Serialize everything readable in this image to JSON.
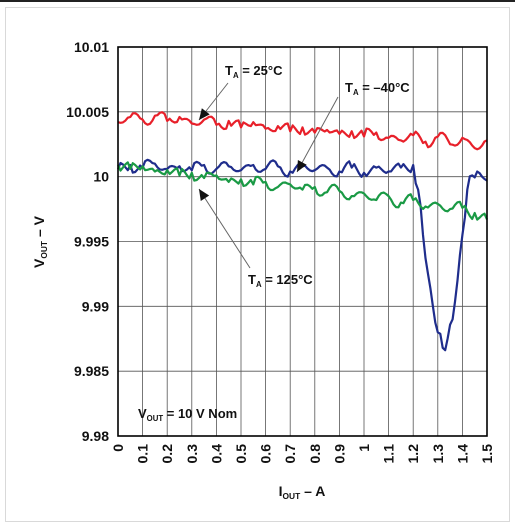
{
  "chart_data": {
    "type": "line",
    "title": "",
    "xlabel": {
      "main": "I",
      "sub": "OUT",
      "rest": " – A"
    },
    "ylabel": {
      "main": "V",
      "sub": "OUT",
      "rest": " – V"
    },
    "xlim": [
      0,
      1.5
    ],
    "ylim": [
      9.98,
      10.01
    ],
    "x_ticks": [
      "0",
      "0.1",
      "0.2",
      "0.3",
      "0.4",
      "0.5",
      "0.6",
      "0.7",
      "0.8",
      "0.9",
      "1",
      "1.1",
      "1.2",
      "1.3",
      "1.4",
      "1.5"
    ],
    "y_ticks": [
      "9.98",
      "9.985",
      "9.99",
      "9.995",
      "10",
      "10.005",
      "10.01"
    ],
    "grid": true,
    "annotations": [
      {
        "main": "T",
        "sub": "A",
        "rest": " = 25°C"
      },
      {
        "main": "T",
        "sub": "A",
        "rest": " = –40°C"
      },
      {
        "main": "T",
        "sub": "A",
        "rest": " = 125°C"
      },
      {
        "main": "V",
        "sub": "OUT",
        "rest": " = 10 V Nom"
      }
    ],
    "series": [
      {
        "color": "#e8202a",
        "x": [
          0,
          0.05,
          0.1,
          0.15,
          0.2,
          0.25,
          0.3,
          0.35,
          0.4,
          0.45,
          0.5,
          0.55,
          0.6,
          0.65,
          0.7,
          0.75,
          0.8,
          0.85,
          0.9,
          0.95,
          1.0,
          1.05,
          1.1,
          1.15,
          1.2,
          1.25,
          1.3,
          1.35,
          1.4,
          1.45,
          1.5
        ],
        "y": [
          10.0042,
          10.0046,
          10.0044,
          10.0047,
          10.0043,
          10.0046,
          10.0041,
          10.0044,
          10.004,
          10.0043,
          10.0038,
          10.0042,
          10.0037,
          10.0039,
          10.0035,
          10.0038,
          10.0034,
          10.0036,
          10.0033,
          10.0035,
          10.0031,
          10.0034,
          10.003,
          10.0028,
          10.0032,
          10.0027,
          10.0031,
          10.0025,
          10.003,
          10.0022,
          10.0028
        ]
      },
      {
        "color": "#1f2d8c",
        "x": [
          0,
          0.05,
          0.1,
          0.15,
          0.2,
          0.25,
          0.3,
          0.35,
          0.4,
          0.45,
          0.5,
          0.55,
          0.6,
          0.65,
          0.7,
          0.75,
          0.8,
          0.85,
          0.9,
          0.95,
          1.0,
          1.05,
          1.1,
          1.15,
          1.2,
          1.22,
          1.24,
          1.26,
          1.28,
          1.3,
          1.32,
          1.34,
          1.36,
          1.38,
          1.4,
          1.42,
          1.44,
          1.46,
          1.48,
          1.5
        ],
        "y": [
          10.0006,
          10.0009,
          10.0007,
          10.001,
          10.0006,
          10.0008,
          10.0005,
          10.0009,
          10.0006,
          10.0008,
          10.0005,
          10.0009,
          10.0006,
          10.0008,
          10.0004,
          10.0008,
          10.0005,
          10.0007,
          10.0004,
          10.0007,
          10.0003,
          10.0007,
          10.0004,
          10.0007,
          10.0009,
          9.999,
          9.9955,
          9.9925,
          9.99,
          9.988,
          9.9868,
          9.9875,
          9.989,
          9.992,
          9.9955,
          9.999,
          10.0001,
          10.0004,
          10.0,
          9.9997
        ]
      },
      {
        "color": "#1a9a45",
        "x": [
          0,
          0.05,
          0.1,
          0.15,
          0.2,
          0.25,
          0.3,
          0.35,
          0.4,
          0.45,
          0.5,
          0.55,
          0.6,
          0.65,
          0.7,
          0.75,
          0.8,
          0.85,
          0.9,
          0.95,
          1.0,
          1.05,
          1.1,
          1.15,
          1.2,
          1.25,
          1.3,
          1.35,
          1.4,
          1.45,
          1.5
        ],
        "y": [
          10.0009,
          10.0006,
          10.0008,
          10.0004,
          10.0005,
          10.0001,
          10.0003,
          9.9999,
          10.0001,
          9.9996,
          9.9998,
          9.9994,
          9.9996,
          9.9992,
          9.9994,
          9.999,
          9.9992,
          9.9988,
          9.9989,
          9.9985,
          9.9987,
          9.9982,
          9.9985,
          9.998,
          9.9982,
          9.9977,
          9.9979,
          9.9975,
          9.9976,
          9.9972,
          9.9967
        ]
      }
    ]
  }
}
